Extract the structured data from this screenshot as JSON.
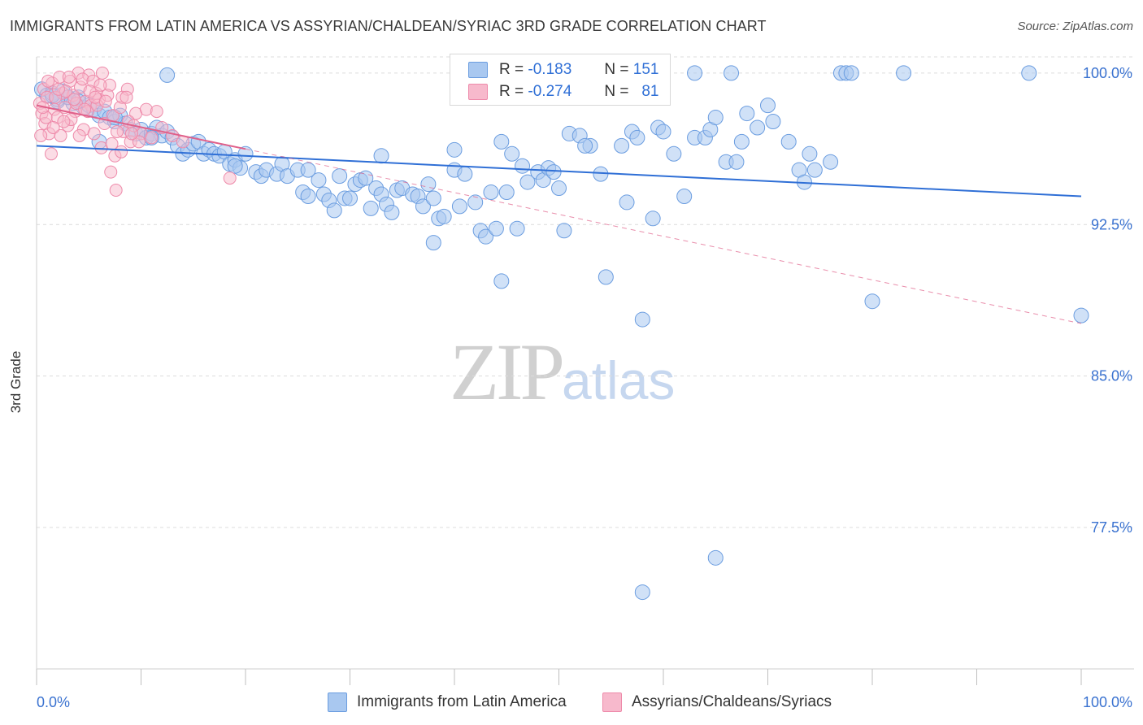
{
  "title": "IMMIGRANTS FROM LATIN AMERICA VS ASSYRIAN/CHALDEAN/SYRIAC 3RD GRADE CORRELATION CHART",
  "source": "Source: ZipAtlas.com",
  "watermark": {
    "zip": "ZIP",
    "atlas": "atlas"
  },
  "legend": {
    "r_label": "R =",
    "n_label": "N =",
    "series1": {
      "r": "-0.183",
      "n": "151"
    },
    "series2": {
      "r": "-0.274",
      "n": "81"
    }
  },
  "colors": {
    "blue_fill": "#a9c8f0",
    "blue_stroke": "#6b9de0",
    "blue_line": "#2f6fd6",
    "pink_fill": "#f7b9cc",
    "pink_stroke": "#ee8aaa",
    "pink_line": "#e0608a",
    "axis_text": "#3a72d0",
    "grid": "#dcdcdc"
  },
  "chart_data": {
    "type": "scatter",
    "title": "IMMIGRANTS FROM LATIN AMERICA VS ASSYRIAN/CHALDEAN/SYRIAC 3RD GRADE CORRELATION CHART",
    "xlabel": "",
    "ylabel": "3rd Grade",
    "xlim": [
      0,
      100
    ],
    "ylim": [
      70.5,
      100.8
    ],
    "x_ticks": [
      "0.0%",
      "100.0%"
    ],
    "y_ticks": [
      {
        "value": 100.0,
        "label": "100.0%"
      },
      {
        "value": 92.5,
        "label": "92.5%"
      },
      {
        "value": 85.0,
        "label": "85.0%"
      },
      {
        "value": 77.5,
        "label": "77.5%"
      }
    ],
    "grid": true,
    "legend_position": "top-center",
    "series": [
      {
        "name": "Immigrants from Latin America",
        "color": "#6b9de0",
        "trend": {
          "x": [
            0,
            100
          ],
          "y": [
            96.4,
            93.9
          ]
        },
        "points": [
          [
            0.5,
            99.2
          ],
          [
            1,
            98.9
          ],
          [
            1.5,
            99.0
          ],
          [
            2,
            98.6
          ],
          [
            2.5,
            99.1
          ],
          [
            3,
            98.8
          ],
          [
            3.5,
            98.5
          ],
          [
            4,
            98.8
          ],
          [
            4.5,
            98.3
          ],
          [
            5,
            98.4
          ],
          [
            5.5,
            98.2
          ],
          [
            6,
            97.9
          ],
          [
            6.5,
            98.1
          ],
          [
            7,
            97.8
          ],
          [
            7.5,
            97.6
          ],
          [
            8,
            97.9
          ],
          [
            8.5,
            97.5
          ],
          [
            9,
            97.2
          ],
          [
            9.5,
            97.0
          ],
          [
            10,
            97.2
          ],
          [
            10.5,
            96.8
          ],
          [
            11,
            97.0
          ],
          [
            11.5,
            97.3
          ],
          [
            12,
            96.9
          ],
          [
            12.5,
            97.1
          ],
          [
            13,
            96.8
          ],
          [
            13.5,
            96.4
          ],
          [
            14,
            96.0
          ],
          [
            14.5,
            96.2
          ],
          [
            15,
            96.5
          ],
          [
            15.5,
            96.6
          ],
          [
            16,
            96.0
          ],
          [
            16.5,
            96.2
          ],
          [
            17,
            96.0
          ],
          [
            17.5,
            95.9
          ],
          [
            18,
            96.1
          ],
          [
            18.5,
            95.5
          ],
          [
            19,
            95.7
          ],
          [
            19.5,
            95.3
          ],
          [
            20,
            96.0
          ],
          [
            21,
            95.1
          ],
          [
            21.5,
            94.9
          ],
          [
            22,
            95.2
          ],
          [
            23,
            95.0
          ],
          [
            23.5,
            95.5
          ],
          [
            24,
            94.9
          ],
          [
            25,
            95.2
          ],
          [
            25.5,
            94.1
          ],
          [
            26,
            93.9
          ],
          [
            27,
            94.7
          ],
          [
            27.5,
            94.0
          ],
          [
            28,
            93.7
          ],
          [
            28.5,
            93.2
          ],
          [
            29,
            94.9
          ],
          [
            29.5,
            93.8
          ],
          [
            30,
            93.8
          ],
          [
            30.5,
            94.5
          ],
          [
            31,
            94.7
          ],
          [
            31.5,
            94.8
          ],
          [
            32,
            93.3
          ],
          [
            32.5,
            94.3
          ],
          [
            33,
            94.0
          ],
          [
            33.5,
            93.5
          ],
          [
            34,
            93.1
          ],
          [
            34.5,
            94.2
          ],
          [
            35,
            94.3
          ],
          [
            36,
            94.0
          ],
          [
            36.5,
            93.9
          ],
          [
            37,
            93.4
          ],
          [
            37.5,
            94.5
          ],
          [
            38,
            93.8
          ],
          [
            38.5,
            92.8
          ],
          [
            39,
            92.9
          ],
          [
            40,
            95.2
          ],
          [
            40.5,
            93.4
          ],
          [
            41,
            95.0
          ],
          [
            42,
            93.6
          ],
          [
            42.5,
            92.2
          ],
          [
            43,
            91.9
          ],
          [
            43.5,
            94.1
          ],
          [
            45,
            94.1
          ],
          [
            46,
            92.3
          ],
          [
            46.5,
            95.4
          ],
          [
            47,
            94.6
          ],
          [
            48,
            95.1
          ],
          [
            48.5,
            94.7
          ],
          [
            49,
            95.3
          ],
          [
            49.5,
            95.1
          ],
          [
            50,
            94.3
          ],
          [
            51,
            97.0
          ],
          [
            52,
            96.9
          ],
          [
            53,
            96.4
          ],
          [
            54,
            95.0
          ],
          [
            56,
            96.4
          ],
          [
            56.5,
            93.6
          ],
          [
            57,
            97.1
          ],
          [
            57.5,
            96.8
          ],
          [
            59,
            92.8
          ],
          [
            59.5,
            97.3
          ],
          [
            60,
            97.1
          ],
          [
            61,
            96.0
          ],
          [
            62,
            93.9
          ],
          [
            63,
            96.8
          ],
          [
            64,
            96.8
          ],
          [
            64.5,
            97.2
          ],
          [
            65,
            97.8
          ],
          [
            66,
            95.6
          ],
          [
            67,
            95.6
          ],
          [
            67.5,
            96.6
          ],
          [
            68,
            98.0
          ],
          [
            69,
            97.3
          ],
          [
            70,
            98.4
          ],
          [
            70.5,
            97.6
          ],
          [
            72,
            96.6
          ],
          [
            73,
            95.2
          ],
          [
            73.5,
            94.6
          ],
          [
            74,
            96.0
          ],
          [
            74.5,
            95.2
          ],
          [
            76,
            95.6
          ],
          [
            6,
            96.6
          ],
          [
            12.5,
            99.9
          ],
          [
            38,
            91.6
          ],
          [
            44,
            92.3
          ],
          [
            50.5,
            92.2
          ],
          [
            11,
            96.8
          ],
          [
            63,
            100
          ],
          [
            66.5,
            100
          ],
          [
            77,
            100
          ],
          [
            77.5,
            100
          ],
          [
            78,
            100
          ],
          [
            83,
            100
          ],
          [
            95,
            100
          ],
          [
            44.5,
            96.6
          ],
          [
            45.5,
            96.0
          ],
          [
            52.5,
            96.4
          ],
          [
            40,
            96.2
          ],
          [
            33,
            95.9
          ],
          [
            26,
            95.2
          ],
          [
            19,
            95.4
          ],
          [
            7.5,
            97.8
          ],
          [
            44.5,
            89.7
          ],
          [
            54.5,
            89.9
          ],
          [
            58,
            87.8
          ],
          [
            80,
            88.7
          ],
          [
            100,
            88.0
          ],
          [
            65,
            76.0
          ],
          [
            58,
            74.3
          ],
          [
            3,
            98.8
          ],
          [
            2,
            98.7
          ],
          [
            4,
            98.6
          ],
          [
            1.5,
            98.9
          ]
        ]
      },
      {
        "name": "Assyrians/Chaldeans/Syriacs",
        "color": "#ee8aaa",
        "trend": {
          "x": [
            0,
            100
          ],
          "y": [
            98.4,
            87.6
          ]
        },
        "points": [
          [
            0.3,
            98.5
          ],
          [
            0.5,
            98.0
          ],
          [
            0.7,
            99.2
          ],
          [
            0.8,
            97.5
          ],
          [
            1,
            98.8
          ],
          [
            1.2,
            97.0
          ],
          [
            1.5,
            99.5
          ],
          [
            1.7,
            98.2
          ],
          [
            2,
            97.8
          ],
          [
            2.2,
            99.8
          ],
          [
            2.5,
            99.0
          ],
          [
            2.7,
            98.3
          ],
          [
            3,
            97.4
          ],
          [
            3.2,
            99.6
          ],
          [
            3.5,
            98.9
          ],
          [
            3.7,
            98.1
          ],
          [
            4,
            100
          ],
          [
            4.2,
            99.3
          ],
          [
            4.5,
            97.2
          ],
          [
            4.7,
            98.6
          ],
          [
            5,
            99.9
          ],
          [
            5.2,
            98.4
          ],
          [
            5.5,
            97.0
          ],
          [
            5.7,
            99.0
          ],
          [
            6,
            98.7
          ],
          [
            6.2,
            96.3
          ],
          [
            6.5,
            97.5
          ],
          [
            7,
            99.4
          ],
          [
            7.3,
            97.9
          ],
          [
            7.5,
            95.9
          ],
          [
            8,
            98.3
          ],
          [
            8.3,
            97.1
          ],
          [
            8.7,
            99.2
          ],
          [
            9,
            96.6
          ],
          [
            9.5,
            98.0
          ],
          [
            10,
            97.0
          ],
          [
            10.5,
            98.2
          ],
          [
            11,
            96.8
          ],
          [
            12,
            97.3
          ],
          [
            13,
            96.9
          ],
          [
            0.4,
            96.9
          ],
          [
            0.9,
            97.8
          ],
          [
            1.4,
            96.0
          ],
          [
            1.8,
            98.8
          ],
          [
            2.3,
            96.9
          ],
          [
            2.8,
            99.1
          ],
          [
            3.3,
            97.7
          ],
          [
            3.8,
            98.5
          ],
          [
            4.4,
            99.7
          ],
          [
            4.9,
            98.1
          ],
          [
            5.4,
            99.6
          ],
          [
            5.8,
            98.4
          ],
          [
            6.3,
            100
          ],
          [
            6.8,
            98.9
          ],
          [
            7.2,
            96.5
          ],
          [
            7.7,
            97.1
          ],
          [
            8.2,
            98.8
          ],
          [
            8.8,
            97.6
          ],
          [
            9.3,
            97.4
          ],
          [
            9.8,
            96.6
          ],
          [
            0.6,
            98.3
          ],
          [
            1.1,
            99.6
          ],
          [
            1.6,
            97.3
          ],
          [
            2.1,
            99.2
          ],
          [
            2.6,
            97.6
          ],
          [
            3.1,
            99.8
          ],
          [
            3.6,
            98.7
          ],
          [
            4.1,
            96.9
          ],
          [
            4.6,
            98.2
          ],
          [
            5.1,
            99.1
          ],
          [
            5.6,
            98.8
          ],
          [
            6.1,
            99.4
          ],
          [
            6.6,
            98.6
          ],
          [
            7.1,
            95.1
          ],
          [
            7.6,
            94.2
          ],
          [
            8.1,
            96.1
          ],
          [
            8.6,
            98.8
          ],
          [
            9.1,
            97.0
          ],
          [
            11.5,
            98.1
          ],
          [
            18.5,
            94.8
          ],
          [
            14,
            96.6
          ]
        ]
      }
    ]
  },
  "bottom_legend": {
    "series1": "Immigrants from Latin America",
    "series2": "Assyrians/Chaldeans/Syriacs"
  },
  "y_axis_title": "3rd Grade"
}
